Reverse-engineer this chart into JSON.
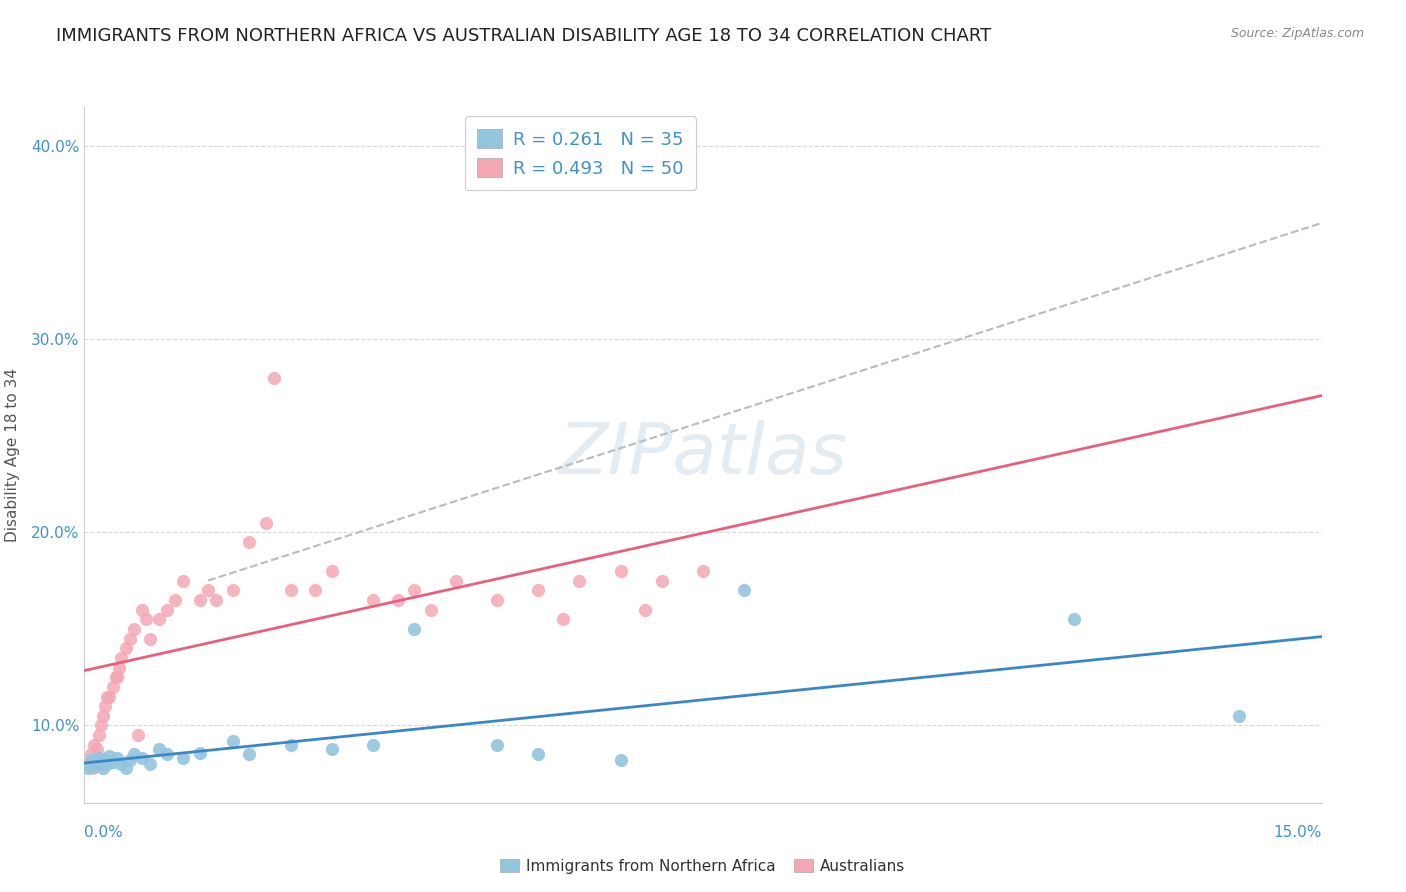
{
  "title": "IMMIGRANTS FROM NORTHERN AFRICA VS AUSTRALIAN DISABILITY AGE 18 TO 34 CORRELATION CHART",
  "source": "Source: ZipAtlas.com",
  "ylabel": "Disability Age 18 to 34",
  "xlim": [
    0.0,
    15.0
  ],
  "ylim": [
    6.0,
    42.0
  ],
  "ytick_vals": [
    10.0,
    20.0,
    30.0,
    40.0
  ],
  "ytick_labels": [
    "10.0%",
    "20.0%",
    "30.0%",
    "40.0%"
  ],
  "blue_R": 0.261,
  "blue_N": 35,
  "pink_R": 0.493,
  "pink_N": 50,
  "blue_color": "#92c5de",
  "pink_color": "#f4a7b4",
  "blue_line_color": "#3a87c8",
  "pink_line_color": "#e8607a",
  "watermark": "ZIPatlas",
  "legend_label_blue": "Immigrants from Northern Africa",
  "legend_label_pink": "Australians",
  "blue_x": [
    0.05,
    0.08,
    0.1,
    0.12,
    0.15,
    0.18,
    0.2,
    0.22,
    0.25,
    0.28,
    0.3,
    0.35,
    0.4,
    0.45,
    0.5,
    0.55,
    0.6,
    0.7,
    0.8,
    0.9,
    1.0,
    1.2,
    1.4,
    1.8,
    2.0,
    2.5,
    3.0,
    3.5,
    4.0,
    5.0,
    5.5,
    6.5,
    8.0,
    12.0,
    14.0
  ],
  "blue_y": [
    7.8,
    8.2,
    8.0,
    7.9,
    8.1,
    8.3,
    8.0,
    7.8,
    8.2,
    8.0,
    8.4,
    8.1,
    8.3,
    8.0,
    7.8,
    8.2,
    8.5,
    8.3,
    8.0,
    8.8,
    8.5,
    8.3,
    8.6,
    9.2,
    8.5,
    9.0,
    8.8,
    9.0,
    15.0,
    9.0,
    8.5,
    8.2,
    17.0,
    15.5,
    10.5
  ],
  "pink_x": [
    0.05,
    0.08,
    0.1,
    0.12,
    0.15,
    0.18,
    0.2,
    0.22,
    0.25,
    0.28,
    0.3,
    0.35,
    0.38,
    0.4,
    0.42,
    0.45,
    0.5,
    0.55,
    0.6,
    0.65,
    0.7,
    0.75,
    0.8,
    0.9,
    1.0,
    1.1,
    1.2,
    1.4,
    1.5,
    1.6,
    1.8,
    2.0,
    2.2,
    2.5,
    2.8,
    3.0,
    3.5,
    3.8,
    4.0,
    4.5,
    5.0,
    5.5,
    5.8,
    6.0,
    6.5,
    6.8,
    7.0,
    7.5,
    4.2,
    2.3
  ],
  "pink_y": [
    8.0,
    8.5,
    7.8,
    9.0,
    8.8,
    9.5,
    10.0,
    10.5,
    11.0,
    11.5,
    11.5,
    12.0,
    12.5,
    12.5,
    13.0,
    13.5,
    14.0,
    14.5,
    15.0,
    9.5,
    16.0,
    15.5,
    14.5,
    15.5,
    16.0,
    16.5,
    17.5,
    16.5,
    17.0,
    16.5,
    17.0,
    19.5,
    20.5,
    17.0,
    17.0,
    18.0,
    16.5,
    16.5,
    17.0,
    17.5,
    16.5,
    17.0,
    15.5,
    17.5,
    18.0,
    16.0,
    17.5,
    18.0,
    16.0,
    28.0
  ],
  "dashed_line_x": [
    1.5,
    15.0
  ],
  "dashed_line_y": [
    17.5,
    36.0
  ],
  "background_color": "#ffffff",
  "grid_color": "#d0d0d0",
  "title_fontsize": 13,
  "axis_label_fontsize": 11,
  "tick_fontsize": 11,
  "legend_fontsize": 13,
  "tick_color": "#4292c6"
}
